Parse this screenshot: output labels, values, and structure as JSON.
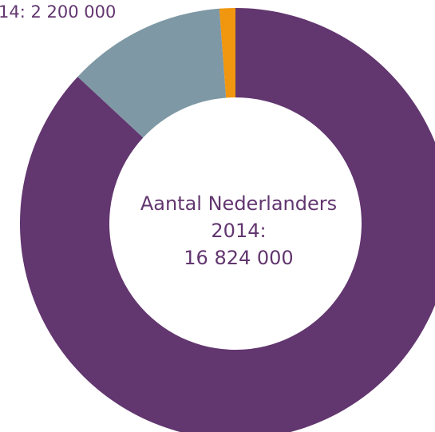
{
  "chart_data": {
    "type": "pie",
    "categories": [
      "",
      "",
      ""
    ],
    "values": [
      14624000,
      2000000,
      200000
    ],
    "colors": [
      "#62366f",
      "#7e98a5",
      "#f0960f"
    ],
    "donut": true,
    "center_text": [
      "Aantal Nederlanders",
      "2014:",
      "16 824 000"
    ],
    "annotations": [
      "14: 2 200 000"
    ],
    "title": "",
    "text_color": "#62366f"
  }
}
